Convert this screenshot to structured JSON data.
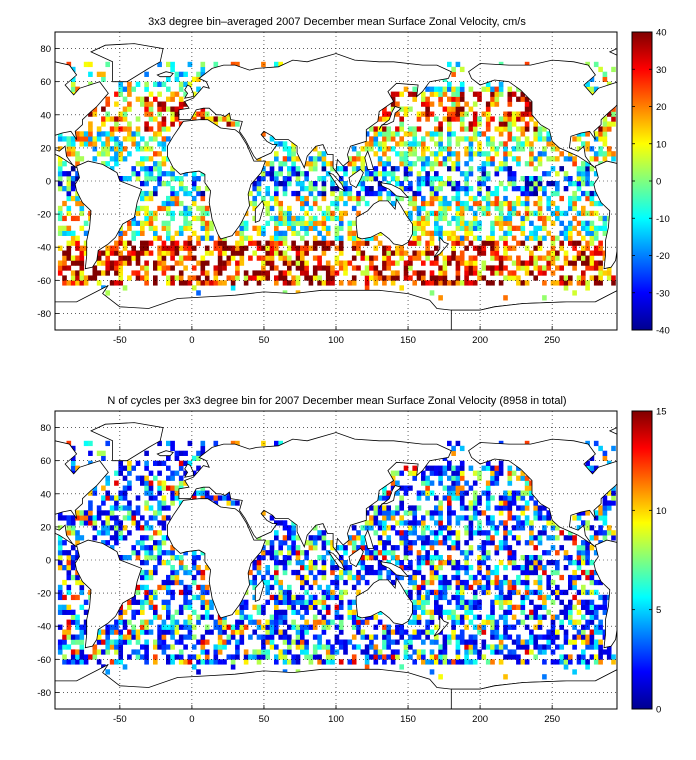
{
  "chart_data": [
    {
      "type": "heatmap",
      "title": "3x3 degree bin–averaged 2007 December mean Surface Zonal Velocity, cm/s",
      "x_ticks": [
        "-50",
        "0",
        "50",
        "100",
        "150",
        "200",
        "250"
      ],
      "y_ticks": [
        "80",
        "60",
        "40",
        "20",
        "0",
        "-20",
        "-40",
        "-60",
        "-80"
      ],
      "colorbar": {
        "ticks": [
          "40",
          "30",
          "20",
          "10",
          "0",
          "-10",
          "-20",
          "-30",
          "-40"
        ],
        "range": [
          -40,
          40
        ],
        "colormap": "jet"
      },
      "xlim": [
        -95,
        295
      ],
      "ylim": [
        -90,
        90
      ],
      "grid": true,
      "bin_size_deg": 3
    },
    {
      "type": "heatmap",
      "title": "N of cycles per 3x3 degree bin for 2007 December mean Surface Zonal Velocity (8958 in total)",
      "x_ticks": [
        "-50",
        "0",
        "50",
        "100",
        "150",
        "200",
        "250"
      ],
      "y_ticks": [
        "80",
        "60",
        "40",
        "20",
        "0",
        "-20",
        "-40",
        "-60",
        "-80"
      ],
      "colorbar": {
        "ticks": [
          "15",
          "10",
          "5",
          "0"
        ],
        "range": [
          0,
          15
        ],
        "colormap": "jet"
      },
      "xlim": [
        -95,
        295
      ],
      "ylim": [
        -90,
        90
      ],
      "grid": true,
      "bin_size_deg": 3
    }
  ]
}
